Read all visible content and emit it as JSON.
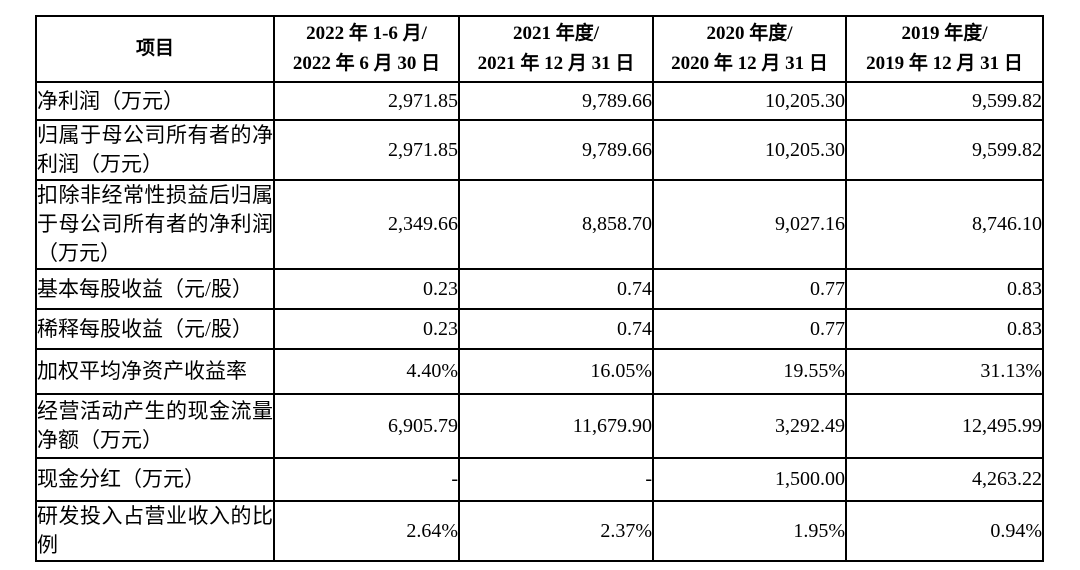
{
  "table": {
    "header": {
      "item_label": "项目",
      "periods": [
        {
          "line1": "2022 年 1-6 月/",
          "line2": "2022 年 6 月 30 日"
        },
        {
          "line1": "2021 年度/",
          "line2": "2021 年 12 月 31 日"
        },
        {
          "line1": "2020 年度/",
          "line2": "2020 年 12 月 31 日"
        },
        {
          "line1": "2019 年度/",
          "line2": "2019 年 12 月 31 日"
        }
      ]
    },
    "rows": [
      {
        "label": "净利润（万元）",
        "values": [
          "2,971.85",
          "9,789.66",
          "10,205.30",
          "9,599.82"
        ]
      },
      {
        "label": "归属于母公司所有者的净利润（万元）",
        "values": [
          "2,971.85",
          "9,789.66",
          "10,205.30",
          "9,599.82"
        ]
      },
      {
        "label": "扣除非经常性损益后归属于母公司所有者的净利润（万元）",
        "values": [
          "2,349.66",
          "8,858.70",
          "9,027.16",
          "8,746.10"
        ]
      },
      {
        "label": "基本每股收益（元/股）",
        "values": [
          "0.23",
          "0.74",
          "0.77",
          "0.83"
        ]
      },
      {
        "label": "稀释每股收益（元/股）",
        "values": [
          "0.23",
          "0.74",
          "0.77",
          "0.83"
        ]
      },
      {
        "label": "加权平均净资产收益率",
        "values": [
          "4.40%",
          "16.05%",
          "19.55%",
          "31.13%"
        ]
      },
      {
        "label": "经营活动产生的现金流量净额（万元）",
        "values": [
          "6,905.79",
          "11,679.90",
          "3,292.49",
          "12,495.99"
        ]
      },
      {
        "label": "现金分红（万元）",
        "values": [
          "-",
          "-",
          "1,500.00",
          "4,263.22"
        ]
      },
      {
        "label": "研发投入占营业收入的比例",
        "values": [
          "2.64%",
          "2.37%",
          "1.95%",
          "0.94%"
        ]
      }
    ]
  },
  "colors": {
    "border": "#000000",
    "text": "#000000",
    "background": "#ffffff"
  }
}
